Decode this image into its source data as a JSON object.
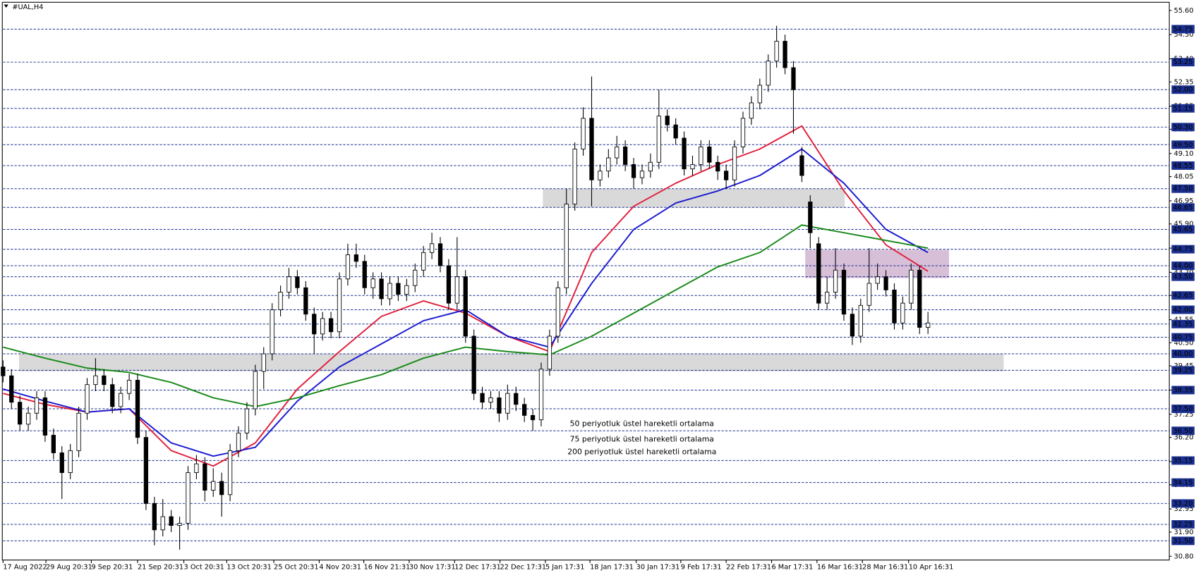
{
  "chart_data": {
    "type": "candlestick",
    "title": "#UAL,H4",
    "xlim": [
      0,
      138.7
    ],
    "ylim": [
      30.63,
      55.9
    ],
    "xticks": [
      {
        "value": 0,
        "label": "17 Aug 2022"
      },
      {
        "value": 5.1,
        "label": "29 Aug 20:31"
      },
      {
        "value": 10.5,
        "label": "9 Sep 20:31"
      },
      {
        "value": 16,
        "label": "21 Sep 20:31"
      },
      {
        "value": 21.5,
        "label": "3 Oct 20:31"
      },
      {
        "value": 26.6,
        "label": "13 Oct 20:31"
      },
      {
        "value": 32.2,
        "label": "25 Oct 20:31"
      },
      {
        "value": 37.6,
        "label": "4 Nov 20:31"
      },
      {
        "value": 42.9,
        "label": "16 Nov 21:31"
      },
      {
        "value": 48.3,
        "label": "30 Nov 17:31"
      },
      {
        "value": 53.7,
        "label": "12 Dec 17:31"
      },
      {
        "value": 59.1,
        "label": "22 Dec 17:31"
      },
      {
        "value": 64.5,
        "label": "5 Jan 17:31"
      },
      {
        "value": 69.8,
        "label": "18 Jan 17:31"
      },
      {
        "value": 75.3,
        "label": "30 Jan 17:31"
      },
      {
        "value": 80.6,
        "label": "9 Feb 17:31"
      },
      {
        "value": 86,
        "label": "22 Feb 17:31"
      },
      {
        "value": 91.4,
        "label": "6 Mar 17:31"
      },
      {
        "value": 96.8,
        "label": "16 Mar 16:31"
      },
      {
        "value": 102.2,
        "label": "28 Mar 16:31"
      },
      {
        "value": 107.7,
        "label": "10 Apr 16:31"
      }
    ],
    "yticks": [
      {
        "value": 55.6,
        "label": "55.60"
      },
      {
        "value": 54.5,
        "label": "54.50"
      },
      {
        "value": 53.4,
        "label": "53.40"
      },
      {
        "value": 52.35,
        "label": "52.35"
      },
      {
        "value": 51.25,
        "label": "51.25"
      },
      {
        "value": 50.2,
        "label": "50.20"
      },
      {
        "value": 49.1,
        "label": "49.10"
      },
      {
        "value": 48.05,
        "label": "48.05"
      },
      {
        "value": 46.95,
        "label": "46.95"
      },
      {
        "value": 45.9,
        "label": "45.90"
      },
      {
        "value": 44.8,
        "label": "44.80"
      },
      {
        "value": 43.7,
        "label": "43.70"
      },
      {
        "value": 42.65,
        "label": "42.65"
      },
      {
        "value": 41.55,
        "label": "41.55"
      },
      {
        "value": 40.5,
        "label": "40.50"
      },
      {
        "value": 39.45,
        "label": "39.45"
      },
      {
        "value": 38.35,
        "label": "38.35"
      },
      {
        "value": 37.25,
        "label": "37.25"
      },
      {
        "value": 36.2,
        "label": "36.20"
      },
      {
        "value": 35.1,
        "label": "35.10"
      },
      {
        "value": 34.05,
        "label": "34.05"
      },
      {
        "value": 32.95,
        "label": "32.95"
      },
      {
        "value": 31.9,
        "label": "31.90"
      },
      {
        "value": 30.8,
        "label": "30.80"
      }
    ],
    "levels": [
      {
        "value": 54.75,
        "label": "54.75"
      },
      {
        "value": 53.25,
        "label": "53.25"
      },
      {
        "value": 52,
        "label": "52.00"
      },
      {
        "value": 51.15,
        "label": "51.15"
      },
      {
        "value": 50.3,
        "label": "50.30"
      },
      {
        "value": 49.5,
        "label": "49.50"
      },
      {
        "value": 48.55,
        "label": "48.55"
      },
      {
        "value": 47.5,
        "label": "47.50"
      },
      {
        "value": 46.65,
        "label": "46.65"
      },
      {
        "value": 45.65,
        "label": "45.65"
      },
      {
        "value": 44.75,
        "label": "44.75"
      },
      {
        "value": 44,
        "label": "44.00"
      },
      {
        "value": 43.5,
        "label": "43.50"
      },
      {
        "value": 42.65,
        "label": "42.65"
      },
      {
        "value": 42,
        "label": "42.00"
      },
      {
        "value": 41.35,
        "label": "41.35"
      },
      {
        "value": 40.75,
        "label": "40.75"
      },
      {
        "value": 40,
        "label": "40.00"
      },
      {
        "value": 39.25,
        "label": "39.25"
      },
      {
        "value": 38.35,
        "label": "38.35"
      },
      {
        "value": 37.5,
        "label": "37.50"
      },
      {
        "value": 36.5,
        "label": "36.50"
      },
      {
        "value": 35.15,
        "label": "35.15"
      },
      {
        "value": 34.15,
        "label": "34.15"
      },
      {
        "value": 33.2,
        "label": "33.20"
      },
      {
        "value": 32.25,
        "label": "32.25"
      },
      {
        "value": 31.5,
        "label": "31.50"
      }
    ],
    "level_color": "#1a2f8f",
    "zones": [
      {
        "x": [
          1.9,
          119
        ],
        "y": [
          39.2,
          40
        ],
        "color": "#d9d9d9"
      },
      {
        "x": [
          64.2,
          100.1
        ],
        "y": [
          46.65,
          47.5
        ],
        "color": "#d9d9d9"
      },
      {
        "x": [
          95.4,
          112.5
        ],
        "y": [
          43.44,
          44.72
        ],
        "color": "#d8bfd8"
      }
    ],
    "candles": {
      "x": [
        0,
        1,
        2,
        3,
        4,
        5,
        6,
        7,
        8,
        9,
        10,
        11,
        12,
        13,
        14,
        15,
        16,
        17,
        18,
        19,
        20,
        21,
        22,
        23,
        24,
        25,
        26,
        27,
        28,
        29,
        30,
        31,
        32,
        33,
        34,
        35,
        36,
        37,
        38,
        39,
        40,
        41,
        42,
        43,
        44,
        45,
        46,
        47,
        48,
        49,
        50,
        51,
        52,
        53,
        54,
        55,
        56,
        57,
        58,
        59,
        60,
        61,
        62,
        63,
        64,
        65,
        66,
        67,
        68,
        69,
        70,
        71,
        72,
        73,
        74,
        75,
        76,
        77,
        78,
        79,
        80,
        81,
        82,
        83,
        84,
        85,
        86,
        87,
        88,
        89,
        90,
        91,
        92,
        93,
        94,
        95,
        96,
        97,
        98,
        99,
        100,
        101,
        102,
        103,
        104,
        105,
        106,
        107,
        108,
        109,
        110
      ],
      "open": [
        39.4,
        39.0,
        37.8,
        36.8,
        37.3,
        38.0,
        36.3,
        35.5,
        34.6,
        35.6,
        37.3,
        38.6,
        39.0,
        38.6,
        37.6,
        38.2,
        38.8,
        36.2,
        33.2,
        32.0,
        32.6,
        32.2,
        32.3,
        34.6,
        35.0,
        33.8,
        34.2,
        33.6,
        35.6,
        36.4,
        37.5,
        39.2,
        40.0,
        42.0,
        42.8,
        43.5,
        43.0,
        41.8,
        40.9,
        41.6,
        41.0,
        43.4,
        44.5,
        44.2,
        43.0,
        43.4,
        42.5,
        43.2,
        42.7,
        43.1,
        43.8,
        44.6,
        45.0,
        44.0,
        42.3,
        43.5,
        40.8,
        38.2,
        37.8,
        38.0,
        37.3,
        38.2,
        37.7,
        37.2,
        37.0,
        39.3,
        40.8,
        43.0,
        46.8,
        49.3,
        50.7,
        47.9,
        48.3,
        48.9,
        49.4,
        48.6,
        48.0,
        48.3,
        48.7,
        50.8,
        50.4,
        49.8,
        48.4,
        48.6,
        49.4,
        48.7,
        48.3,
        47.9,
        49.4,
        50.7,
        51.4,
        52.2,
        53.3,
        54.2,
        53.0,
        49.0,
        46.9,
        45.0,
        42.3,
        42.8,
        43.8,
        41.8,
        40.8,
        42.2,
        43.2,
        43.5,
        42.9,
        41.4,
        42.3,
        43.8,
        41.2
      ],
      "high": [
        39.7,
        39.3,
        38.1,
        37.6,
        38.3,
        38.3,
        36.6,
        35.8,
        35.9,
        37.6,
        38.9,
        39.8,
        39.3,
        38.9,
        38.5,
        39.1,
        39.1,
        36.5,
        33.5,
        33.4,
        32.9,
        32.6,
        34.9,
        35.4,
        35.3,
        34.8,
        34.6,
        35.9,
        36.7,
        37.8,
        39.5,
        40.3,
        42.3,
        43.1,
        43.9,
        43.8,
        43.3,
        42.1,
        41.9,
        41.9,
        43.7,
        45.0,
        45.0,
        44.5,
        43.7,
        43.7,
        43.5,
        43.5,
        43.4,
        44.1,
        44.9,
        45.5,
        45.3,
        44.3,
        45.3,
        43.8,
        41.1,
        38.5,
        38.3,
        38.3,
        38.6,
        38.5,
        38.0,
        37.5,
        39.6,
        41.1,
        43.3,
        47.5,
        49.6,
        51.2,
        52.6,
        48.6,
        49.3,
        49.9,
        49.7,
        48.9,
        48.6,
        49.1,
        52.0,
        51.1,
        50.7,
        50.1,
        49.0,
        49.7,
        49.7,
        49.0,
        48.6,
        49.7,
        51.0,
        51.7,
        52.5,
        53.6,
        54.9,
        54.5,
        53.3,
        49.4,
        47.2,
        45.3,
        43.5,
        44.8,
        44.1,
        42.1,
        42.5,
        44.8,
        44.1,
        43.8,
        43.2,
        42.6,
        44.1,
        44.0,
        41.9
      ],
      "low": [
        38.7,
        37.5,
        36.5,
        36.5,
        37.0,
        36.0,
        35.2,
        33.4,
        34.3,
        35.3,
        37.0,
        38.3,
        38.3,
        37.3,
        37.3,
        37.9,
        35.9,
        32.9,
        31.3,
        31.7,
        31.9,
        31.1,
        32.0,
        34.3,
        33.3,
        33.5,
        32.6,
        33.3,
        35.3,
        36.1,
        37.2,
        38.4,
        39.7,
        41.7,
        42.5,
        42.7,
        41.5,
        40.0,
        40.6,
        40.7,
        40.7,
        43.1,
        43.9,
        42.7,
        42.5,
        42.2,
        42.2,
        42.4,
        42.4,
        42.8,
        43.5,
        44.3,
        43.7,
        42.0,
        42.0,
        40.5,
        37.9,
        37.5,
        37.5,
        36.9,
        37.0,
        37.4,
        36.9,
        36.5,
        36.7,
        39.0,
        40.5,
        42.7,
        46.5,
        49.0,
        46.7,
        47.6,
        48.0,
        48.6,
        48.3,
        47.5,
        47.7,
        48.0,
        48.4,
        50.1,
        49.5,
        48.1,
        48.1,
        48.3,
        48.4,
        47.9,
        47.5,
        47.6,
        49.1,
        50.4,
        51.1,
        51.9,
        53.0,
        52.7,
        50.0,
        47.8,
        44.8,
        42.0,
        42.0,
        42.5,
        41.5,
        40.4,
        40.5,
        41.9,
        42.9,
        42.6,
        41.1,
        41.1,
        42.0,
        40.9,
        40.9
      ],
      "close": [
        39.0,
        37.8,
        36.8,
        37.3,
        38.0,
        36.3,
        35.5,
        34.6,
        35.6,
        37.3,
        38.6,
        39.0,
        38.6,
        37.6,
        38.2,
        38.8,
        36.2,
        33.2,
        32.0,
        32.6,
        32.2,
        32.3,
        34.6,
        35.0,
        33.8,
        34.2,
        33.6,
        35.6,
        36.4,
        37.5,
        39.2,
        40.0,
        42.0,
        42.8,
        43.5,
        43.0,
        41.8,
        40.9,
        41.6,
        41.0,
        43.4,
        44.5,
        44.2,
        43.0,
        43.4,
        42.5,
        43.2,
        42.7,
        43.1,
        43.8,
        44.6,
        45.0,
        44.0,
        42.3,
        43.5,
        40.8,
        38.2,
        37.8,
        38.0,
        37.3,
        38.2,
        37.7,
        37.2,
        37.0,
        39.3,
        40.8,
        43.0,
        46.8,
        49.3,
        50.7,
        47.9,
        48.3,
        48.9,
        49.4,
        48.6,
        48.0,
        48.3,
        48.7,
        50.8,
        50.4,
        49.8,
        48.4,
        48.6,
        49.4,
        48.7,
        48.3,
        47.9,
        49.4,
        50.7,
        51.4,
        52.2,
        53.3,
        54.2,
        53.0,
        52.0,
        48.1,
        45.5,
        42.3,
        42.8,
        43.8,
        41.8,
        40.8,
        42.2,
        43.2,
        43.5,
        42.9,
        41.4,
        42.3,
        43.8,
        41.2,
        41.4
      ]
    },
    "series": [
      {
        "name": "50 periyotluk üstel hareketli ortalama",
        "color": "#e0203c",
        "x": [
          0,
          5,
          10,
          15,
          20,
          25,
          30,
          35,
          40,
          45,
          50,
          55,
          60,
          65,
          70,
          75,
          80,
          85,
          90,
          95,
          100,
          105,
          110
        ],
        "values": [
          38.2,
          37.7,
          37.35,
          37.5,
          35.6,
          34.9,
          35.95,
          38.4,
          40.1,
          41.7,
          42.4,
          41.85,
          40.8,
          40.1,
          44.6,
          46.7,
          47.75,
          48.6,
          49.3,
          50.35,
          47.4,
          44.95,
          43.75
        ]
      },
      {
        "name": "75 periyotluk üstel hareketli ortalama",
        "color": "#1a1ad0",
        "x": [
          0,
          5,
          10,
          15,
          20,
          25,
          30,
          35,
          40,
          45,
          50,
          55,
          60,
          65,
          70,
          75,
          80,
          85,
          90,
          95,
          100,
          105,
          110
        ],
        "values": [
          38.4,
          37.85,
          37.35,
          37.5,
          35.95,
          35.35,
          35.75,
          37.85,
          39.4,
          40.45,
          41.5,
          42.0,
          40.8,
          40.3,
          43.2,
          45.65,
          46.85,
          47.4,
          48.1,
          49.3,
          47.75,
          45.65,
          44.6
        ]
      },
      {
        "name": "200 periyotluk üstel hareketli ortalama",
        "color": "#1a8a1a",
        "x": [
          0,
          5,
          10,
          15,
          20,
          25,
          30,
          35,
          40,
          45,
          50,
          55,
          60,
          65,
          70,
          75,
          80,
          85,
          90,
          95,
          100,
          105,
          110
        ],
        "values": [
          40.3,
          39.8,
          39.35,
          39.15,
          38.7,
          38.0,
          37.6,
          38.0,
          38.55,
          39.05,
          39.8,
          40.3,
          40.1,
          39.95,
          40.8,
          41.85,
          42.9,
          43.95,
          44.6,
          45.85,
          45.5,
          45.15,
          44.8
        ]
      }
    ]
  }
}
